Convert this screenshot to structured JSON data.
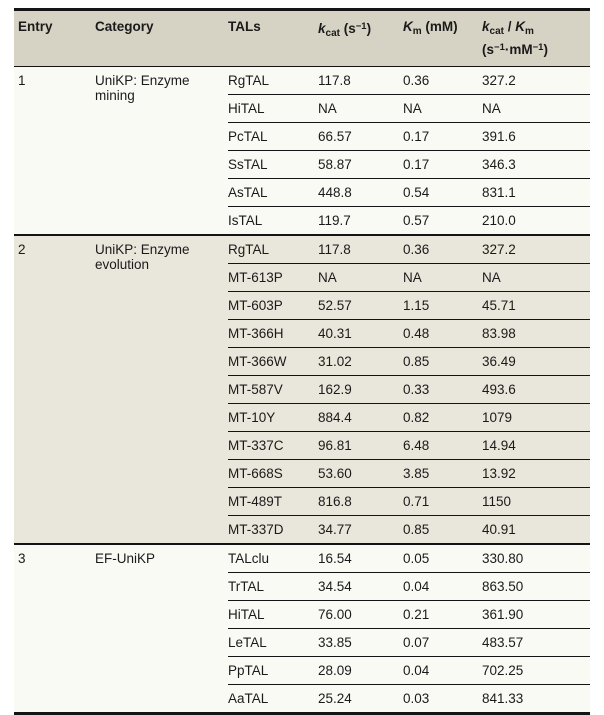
{
  "colors": {
    "header_bg": "#d6d3c4",
    "section_shaded_bg": "#e9e6db",
    "section_plain_bg": "#fafaf5",
    "rule_color": "#141414",
    "text_color": "#1a1a1a",
    "page_bg": "#ffffff"
  },
  "table": {
    "columns": [
      {
        "name": "entry",
        "segments": [
          {
            "t": "Entry"
          }
        ]
      },
      {
        "name": "category",
        "segments": [
          {
            "t": "Category"
          }
        ]
      },
      {
        "name": "tals",
        "segments": [
          {
            "t": "TALs"
          }
        ]
      },
      {
        "name": "kcat",
        "segments": [
          {
            "t": "k",
            "s": "vi"
          },
          {
            "t": "cat",
            "s": "sub"
          },
          {
            "t": " (s"
          },
          {
            "t": "−1",
            "s": "sup"
          },
          {
            "t": ")"
          }
        ]
      },
      {
        "name": "km",
        "segments": [
          {
            "t": "K",
            "s": "vi"
          },
          {
            "t": "m",
            "s": "sub"
          },
          {
            "t": " (mM)"
          }
        ]
      },
      {
        "name": "kcat-over-km",
        "segments": [
          {
            "t": "k",
            "s": "vi"
          },
          {
            "t": "cat",
            "s": "sub"
          },
          {
            "t": " / "
          },
          {
            "t": "K",
            "s": "vi"
          },
          {
            "t": "m",
            "s": "sub"
          },
          {
            "t": "",
            "s": "br"
          },
          {
            "t": "(s"
          },
          {
            "t": "−1",
            "s": "sup"
          },
          {
            "t": "·mM"
          },
          {
            "t": "−1",
            "s": "sup"
          },
          {
            "t": ")"
          }
        ]
      }
    ],
    "sections": [
      {
        "entry": "1",
        "category": "UniKP: Enzyme mining",
        "rows": [
          {
            "values": [
              "RgTAL",
              "117.8",
              "0.36",
              "327.2"
            ]
          },
          {
            "values": [
              "HiTAL",
              "NA",
              "NA",
              "NA"
            ]
          },
          {
            "values": [
              "PcTAL",
              "66.57",
              "0.17",
              "391.6"
            ]
          },
          {
            "values": [
              "SsTAL",
              "58.87",
              "0.17",
              "346.3"
            ]
          },
          {
            "values": [
              "AsTAL",
              "448.8",
              "0.54",
              "831.1"
            ]
          },
          {
            "values": [
              "IsTAL",
              "119.7",
              "0.57",
              "210.0"
            ]
          }
        ]
      },
      {
        "entry": "2",
        "category": "UniKP: Enzyme evolution",
        "rows": [
          {
            "values": [
              "RgTAL",
              "117.8",
              "0.36",
              "327.2"
            ]
          },
          {
            "values": [
              "MT-613P",
              "NA",
              "NA",
              "NA"
            ]
          },
          {
            "values": [
              "MT-603P",
              "52.57",
              "1.15",
              "45.71"
            ]
          },
          {
            "values": [
              "MT-366H",
              "40.31",
              "0.48",
              "83.98"
            ]
          },
          {
            "values": [
              "MT-366W",
              "31.02",
              "0.85",
              "36.49"
            ]
          },
          {
            "values": [
              "MT-587V",
              "162.9",
              "0.33",
              "493.6"
            ]
          },
          {
            "values": [
              "MT-10Y",
              "884.4",
              "0.82",
              "1079"
            ]
          },
          {
            "values": [
              "MT-337C",
              "96.81",
              "6.48",
              "14.94"
            ]
          },
          {
            "values": [
              "MT-668S",
              "53.60",
              "3.85",
              "13.92"
            ]
          },
          {
            "values": [
              "MT-489T",
              "816.8",
              "0.71",
              "1150"
            ]
          },
          {
            "values": [
              "MT-337D",
              "34.77",
              "0.85",
              "40.91"
            ]
          }
        ]
      },
      {
        "entry": "3",
        "category": "EF-UniKP",
        "rows": [
          {
            "values": [
              "TALclu",
              "16.54",
              "0.05",
              "330.80"
            ]
          },
          {
            "values": [
              "TrTAL",
              "34.54",
              "0.04",
              "863.50"
            ]
          },
          {
            "values": [
              "HiTAL",
              "76.00",
              "0.21",
              "361.90"
            ]
          },
          {
            "values": [
              "LeTAL",
              "33.85",
              "0.07",
              "483.57"
            ]
          },
          {
            "values": [
              "PpTAL",
              "28.09",
              "0.04",
              "702.25"
            ]
          },
          {
            "values": [
              "AaTAL",
              "25.24",
              "0.03",
              "841.33"
            ]
          }
        ]
      }
    ]
  }
}
